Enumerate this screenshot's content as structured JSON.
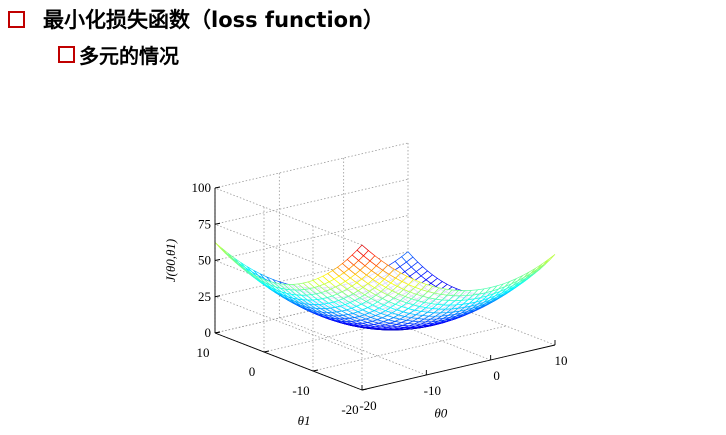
{
  "heading": {
    "level1": "最小化损失函数（loss function）",
    "level2": "多元的情况",
    "bullet_color": "#c00000"
  },
  "chart_data": {
    "type": "surface3d",
    "function": "J = a*theta0^2 + b*theta1^2 (convex bowl)",
    "x": {
      "label": "θ0",
      "range": [
        -20,
        10
      ],
      "ticks": [
        -20,
        -10,
        0,
        10
      ]
    },
    "y": {
      "label": "θ1",
      "range": [
        -20,
        10
      ],
      "ticks": [
        -20,
        -10,
        0,
        10
      ]
    },
    "z": {
      "label": "J(θ0,θ1)",
      "range": [
        0,
        100
      ],
      "ticks": [
        0,
        25,
        50,
        75,
        100
      ]
    },
    "grid": true,
    "colormap": "jet"
  }
}
